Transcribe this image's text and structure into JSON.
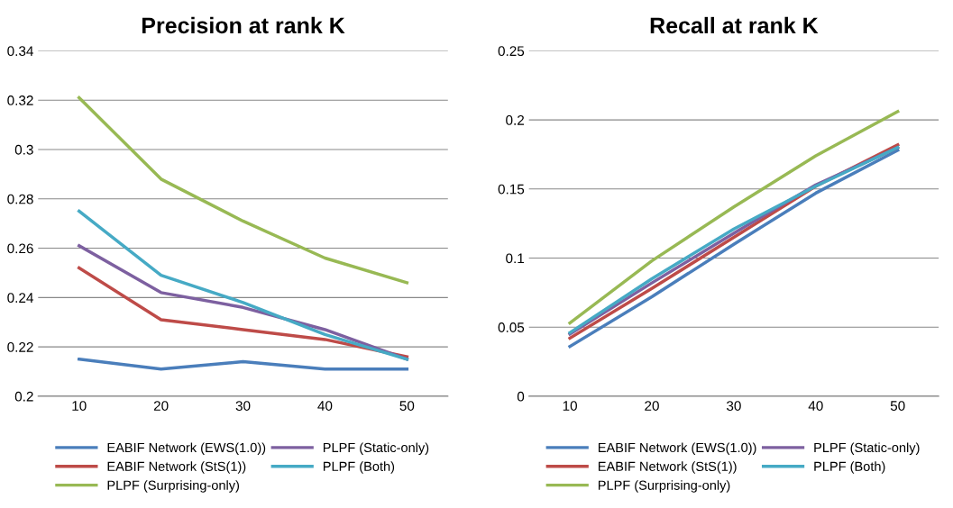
{
  "chart_data": [
    {
      "type": "line",
      "title": "Precision at rank K",
      "categories": [
        "10",
        "20",
        "30",
        "40",
        "50"
      ],
      "ylim": [
        0.2,
        0.34
      ],
      "yticks": [
        {
          "value": 0.2,
          "label": "0.2"
        },
        {
          "value": 0.22,
          "label": "0.22"
        },
        {
          "value": 0.24,
          "label": "0.24"
        },
        {
          "value": 0.26,
          "label": "0.26"
        },
        {
          "value": 0.28,
          "label": "0.28"
        },
        {
          "value": 0.3,
          "label": "0.3"
        },
        {
          "value": 0.32,
          "label": "0.32"
        },
        {
          "value": 0.34,
          "label": "0.34"
        }
      ],
      "grid": "y",
      "legend": "bottom",
      "marker": "none",
      "series": [
        {
          "name": "EABIF Network (EWS(1.0))",
          "color": "#4a7ebb",
          "values": [
            0.215,
            0.211,
            0.214,
            0.211,
            0.211
          ]
        },
        {
          "name": "EABIF Network (StS(1))",
          "color": "#be4b48",
          "values": [
            0.252,
            0.231,
            0.227,
            0.223,
            0.216
          ]
        },
        {
          "name": "PLPF (Surprising-only)",
          "color": "#98b954",
          "values": [
            0.321,
            0.288,
            0.271,
            0.256,
            0.246
          ]
        },
        {
          "name": "PLPF (Static-only)",
          "color": "#7d60a0",
          "values": [
            0.261,
            0.242,
            0.236,
            0.227,
            0.215
          ]
        },
        {
          "name": "PLPF (Both)",
          "color": "#46aac5",
          "values": [
            0.275,
            0.249,
            0.238,
            0.225,
            0.215
          ]
        }
      ]
    },
    {
      "type": "line",
      "title": "Recall at rank K",
      "categories": [
        "10",
        "20",
        "30",
        "40",
        "50"
      ],
      "ylim": [
        0,
        0.25
      ],
      "yticks": [
        0,
        {
          "value": 0.05,
          "label": "0.05"
        },
        {
          "value": 0.1,
          "label": "0.1"
        },
        {
          "value": 0.15,
          "label": "0.15"
        },
        {
          "value": 0.2,
          "label": "0.2"
        },
        {
          "value": 0.25,
          "label": "0.25"
        }
      ],
      "grid": "y",
      "legend": "bottom",
      "marker": "none",
      "series": [
        {
          "name": "EABIF Network (EWS(1.0))",
          "color": "#4a7ebb",
          "values": [
            0.036,
            0.072,
            0.11,
            0.147,
            0.178
          ]
        },
        {
          "name": "EABIF Network (StS(1))",
          "color": "#be4b48",
          "values": [
            0.042,
            0.078,
            0.115,
            0.152,
            0.182
          ]
        },
        {
          "name": "PLPF (Surprising-only)",
          "color": "#98b954",
          "values": [
            0.053,
            0.098,
            0.137,
            0.174,
            0.206
          ]
        },
        {
          "name": "PLPF (Static-only)",
          "color": "#7d60a0",
          "values": [
            0.045,
            0.082,
            0.118,
            0.153,
            0.18
          ]
        },
        {
          "name": "PLPF (Both)",
          "color": "#46aac5",
          "values": [
            0.046,
            0.085,
            0.121,
            0.152,
            0.18
          ]
        }
      ]
    }
  ]
}
